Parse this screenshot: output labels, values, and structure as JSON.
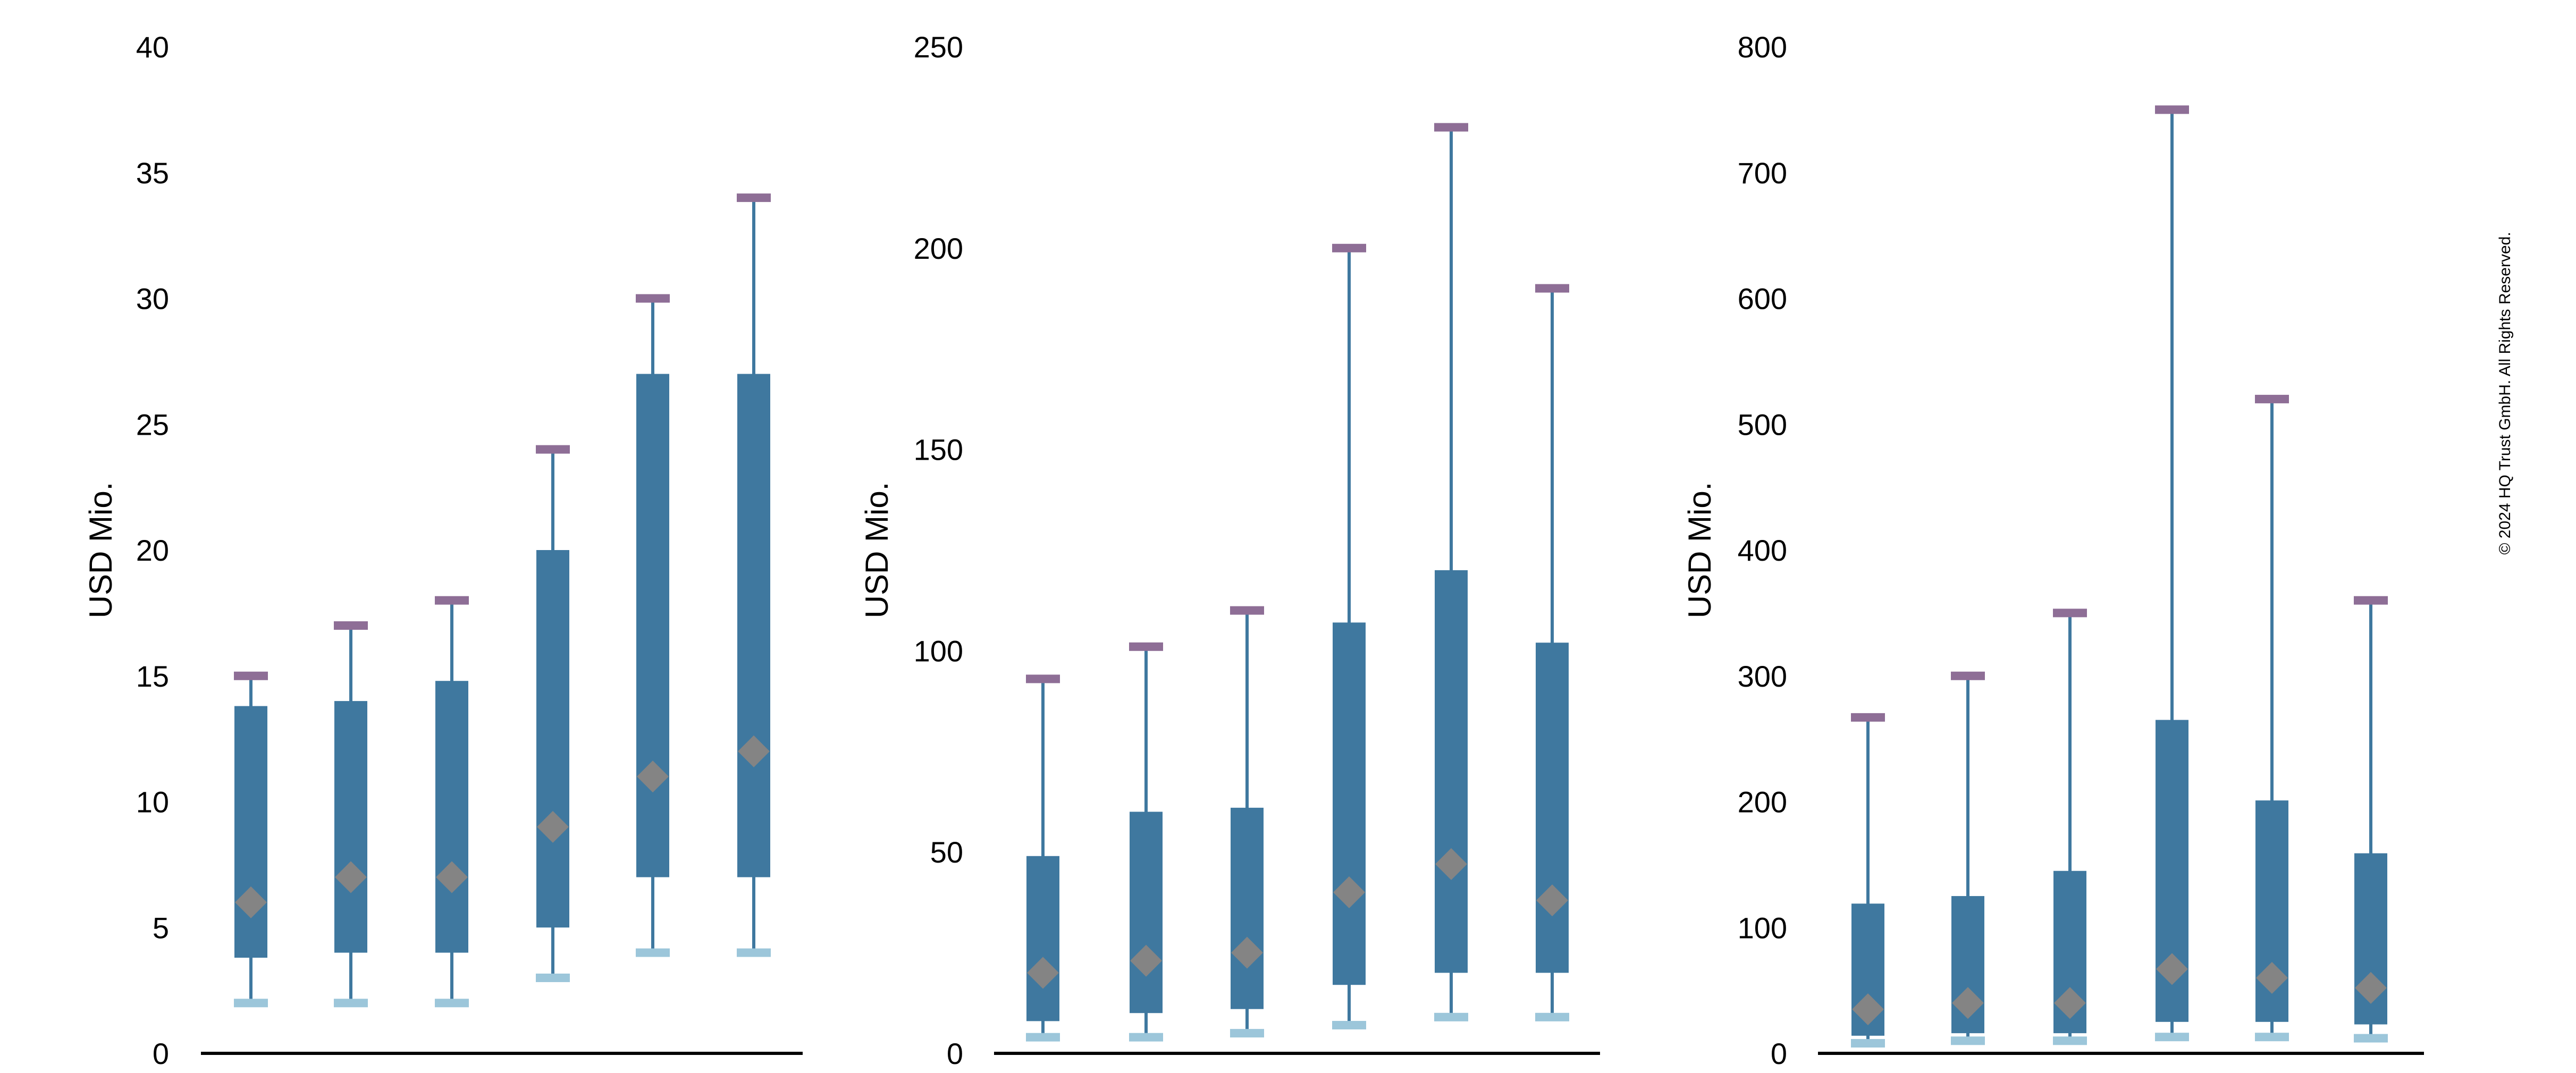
{
  "colors": {
    "box": "#3F789F",
    "whisker": "#3F789F",
    "max_cap": "#8E6E96",
    "min_cap": "#9CC6DA",
    "mean_marker": "#848484",
    "axis": "#000000"
  },
  "copyright": "© 2024 HQ Trust GmbH. All Rights Reserved.",
  "chart_data": [
    {
      "type": "box",
      "ylabel": "USD Mio.",
      "ylim": [
        0,
        40
      ],
      "yticks": [
        "0",
        "5",
        "10",
        "15",
        "20",
        "25",
        "30",
        "35",
        "40"
      ],
      "grid": false,
      "series": [
        {
          "min": 2,
          "q1": 3.8,
          "q3": 13.8,
          "max": 15,
          "mean": 6
        },
        {
          "min": 2,
          "q1": 4,
          "q3": 14,
          "max": 17,
          "mean": 7
        },
        {
          "min": 2,
          "q1": 4,
          "q3": 14.8,
          "max": 18,
          "mean": 7
        },
        {
          "min": 3,
          "q1": 5,
          "q3": 20,
          "max": 24,
          "mean": 9
        },
        {
          "min": 4,
          "q1": 7,
          "q3": 27,
          "max": 30,
          "mean": 11
        },
        {
          "min": 4,
          "q1": 7,
          "q3": 27,
          "max": 34,
          "mean": 12
        }
      ]
    },
    {
      "type": "box",
      "ylabel": "USD Mio.",
      "ylim": [
        0,
        250
      ],
      "yticks": [
        "0",
        "50",
        "100",
        "150",
        "200",
        "250"
      ],
      "grid": false,
      "series": [
        {
          "min": 4,
          "q1": 8,
          "q3": 49,
          "max": 93,
          "mean": 20
        },
        {
          "min": 4,
          "q1": 10,
          "q3": 60,
          "max": 101,
          "mean": 23
        },
        {
          "min": 5,
          "q1": 11,
          "q3": 61,
          "max": 110,
          "mean": 25
        },
        {
          "min": 7,
          "q1": 17,
          "q3": 107,
          "max": 200,
          "mean": 40
        },
        {
          "min": 9,
          "q1": 20,
          "q3": 120,
          "max": 230,
          "mean": 47
        },
        {
          "min": 9,
          "q1": 20,
          "q3": 102,
          "max": 190,
          "mean": 38
        }
      ]
    },
    {
      "type": "box",
      "ylabel": "USD Mio.",
      "ylim": [
        0,
        800
      ],
      "yticks": [
        "0",
        "100",
        "200",
        "300",
        "400",
        "500",
        "600",
        "700",
        "800"
      ],
      "grid": false,
      "series": [
        {
          "min": 8,
          "q1": 14,
          "q3": 119,
          "max": 267,
          "mean": 35
        },
        {
          "min": 10,
          "q1": 16,
          "q3": 125,
          "max": 300,
          "mean": 40
        },
        {
          "min": 10,
          "q1": 16,
          "q3": 145,
          "max": 350,
          "mean": 40
        },
        {
          "min": 13,
          "q1": 25,
          "q3": 265,
          "max": 750,
          "mean": 67
        },
        {
          "min": 13,
          "q1": 25,
          "q3": 201,
          "max": 520,
          "mean": 60
        },
        {
          "min": 12,
          "q1": 23,
          "q3": 159,
          "max": 360,
          "mean": 52
        }
      ]
    }
  ]
}
